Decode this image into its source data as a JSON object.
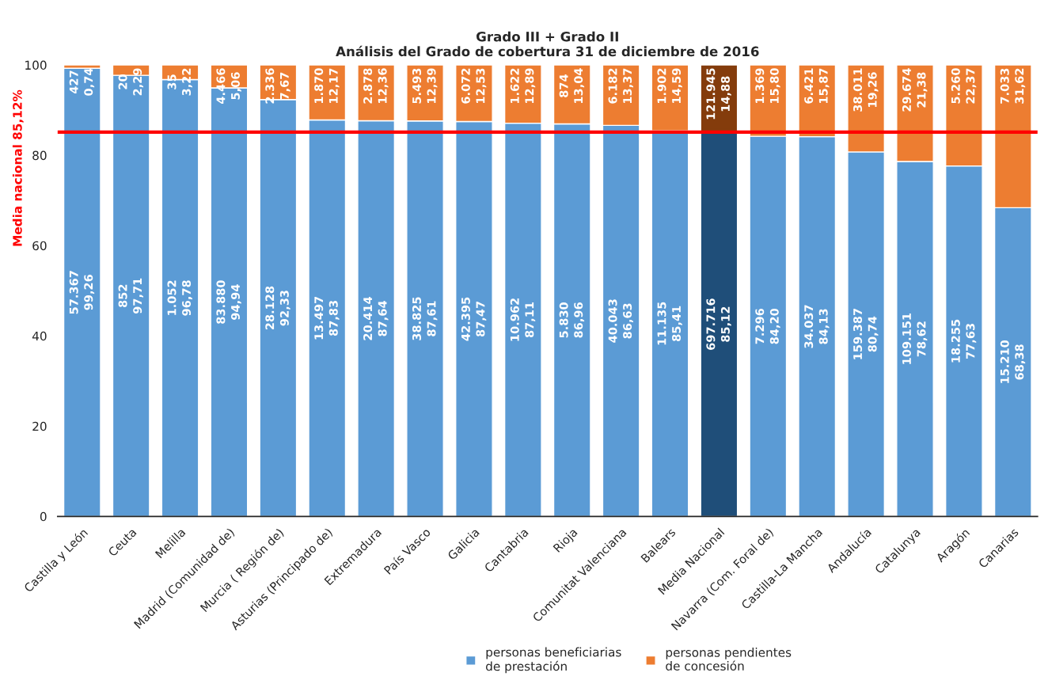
{
  "chart_data": {
    "type": "bar",
    "stacked": true,
    "title": "Grado III + Grado II",
    "subtitle": "Análisis del Grado de cobertura 31 de diciembre de 2016",
    "categories": [
      "Castilla y León",
      "Ceuta",
      "Melilla",
      "Madrid (Comunidad de)",
      "Murcia ( Región de)",
      "Asturias (Principado de)",
      "Extremadura",
      "País Vasco",
      "Galicia",
      "Cantabria",
      "Rioja",
      "Comunitat Valenciana",
      "Balears",
      "Media Nacional",
      "Navarra (Com. Foral de)",
      "Castilla-La Mancha",
      "Andalucía",
      "Catalunya",
      "Aragón",
      "Canarias"
    ],
    "series": [
      {
        "name": "personas beneficiarias\nde prestación",
        "colors": [
          "#5b9bd5",
          "#5b9bd5",
          "#5b9bd5",
          "#5b9bd5",
          "#5b9bd5",
          "#5b9bd5",
          "#5b9bd5",
          "#5b9bd5",
          "#5b9bd5",
          "#5b9bd5",
          "#5b9bd5",
          "#5b9bd5",
          "#5b9bd5",
          "#1f4e79",
          "#5b9bd5",
          "#5b9bd5",
          "#5b9bd5",
          "#5b9bd5",
          "#5b9bd5",
          "#5b9bd5"
        ],
        "values": [
          99.26,
          97.71,
          96.78,
          94.94,
          92.33,
          87.83,
          87.64,
          87.61,
          87.47,
          87.11,
          86.96,
          86.63,
          85.41,
          85.12,
          84.2,
          84.13,
          80.74,
          78.62,
          77.63,
          68.38
        ],
        "value_labels": [
          "57.367\n99,26",
          "852\n97,71",
          "1.052\n96,78",
          "83.880\n94,94",
          "28.128\n92,33",
          "13.497\n87,83",
          "20.414\n87,64",
          "38.825\n87,61",
          "42.395\n87,47",
          "10.962\n87,11",
          "5.830\n86,96",
          "40.043\n86,63",
          "11.135\n85,41",
          "697.716\n85,12",
          "7.296\n84,20",
          "34.037\n84,13",
          "159.387\n80,74",
          "109.151\n78,62",
          "18.255\n77,63",
          "15.210\n68,38"
        ]
      },
      {
        "name": "personas pendientes\nde concesión",
        "colors": [
          "#ed7d31",
          "#ed7d31",
          "#ed7d31",
          "#ed7d31",
          "#ed7d31",
          "#ed7d31",
          "#ed7d31",
          "#ed7d31",
          "#ed7d31",
          "#ed7d31",
          "#ed7d31",
          "#ed7d31",
          "#ed7d31",
          "#843c0c",
          "#ed7d31",
          "#ed7d31",
          "#ed7d31",
          "#ed7d31",
          "#ed7d31",
          "#ed7d31"
        ],
        "values": [
          0.74,
          2.29,
          3.22,
          5.06,
          7.67,
          12.17,
          12.36,
          12.39,
          12.53,
          12.89,
          13.04,
          13.37,
          14.59,
          14.88,
          15.8,
          15.87,
          19.26,
          21.38,
          22.37,
          31.62
        ],
        "value_labels": [
          "427\n0,74",
          "20\n2,29",
          "35\n3,22",
          "4.466\n5,06",
          "2.336\n7,67",
          "1.870\n12,17",
          "2.878\n12,36",
          "5.493\n12,39",
          "6.072\n12,53",
          "1.622\n12,89",
          "874\n13,04",
          "6.182\n13,37",
          "1.902\n14,59",
          "121.945\n14,88",
          "1.369\n15,80",
          "6.421\n15,87",
          "38.011\n19,26",
          "29.674\n21,38",
          "5.260\n22,37",
          "7.033\n31,62"
        ]
      }
    ],
    "ylim": [
      0,
      100
    ],
    "yticks": [
      0,
      20,
      40,
      60,
      80,
      100
    ],
    "grid": false,
    "legend": "bottom",
    "ref_lines": [
      {
        "axis": "y",
        "value": 85.12,
        "label": "Media nacional 85,12%",
        "color": "#ff0000"
      }
    ]
  }
}
